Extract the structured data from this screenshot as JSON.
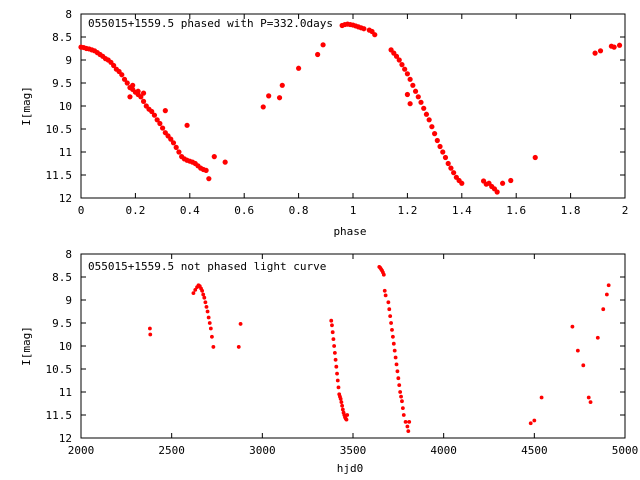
{
  "chart_data": [
    {
      "type": "scatter",
      "title": "055015+1559.5 phased with P=332.0days",
      "xlabel": "phase",
      "ylabel": "I[mag]",
      "xlim": [
        0,
        2
      ],
      "ylim": [
        12,
        8
      ],
      "y_inverted": true,
      "grid": false,
      "marker_color": "#ff0000",
      "x_ticks": [
        "0",
        "0.2",
        "0.4",
        "0.6",
        "0.8",
        "1",
        "1.2",
        "1.4",
        "1.6",
        "1.8",
        "2"
      ],
      "y_ticks": [
        "8",
        "8.5",
        "9",
        "9.5",
        "10",
        "10.5",
        "11",
        "11.5",
        "12"
      ],
      "series": [
        {
          "x": [
            0.0,
            0.01,
            0.02,
            0.03,
            0.04,
            0.05,
            0.06,
            0.07,
            0.08,
            0.09,
            0.1,
            0.11,
            0.12,
            0.13,
            0.14,
            0.15,
            0.16,
            0.17,
            0.18,
            0.19,
            0.2,
            0.21,
            0.22,
            0.23,
            0.24,
            0.25,
            0.26,
            0.27,
            0.28,
            0.29,
            0.3,
            0.31,
            0.32,
            0.33,
            0.34,
            0.35,
            0.36,
            0.37,
            0.38,
            0.39,
            0.4,
            0.41,
            0.42,
            0.43,
            0.44,
            0.45,
            0.46,
            0.47,
            0.49,
            0.53,
            0.67,
            0.69,
            0.73,
            0.74,
            0.8,
            0.87,
            0.89,
            0.96,
            0.97,
            0.98,
            0.99,
            1.0,
            1.01,
            1.02,
            1.03,
            1.04,
            1.06,
            1.07,
            1.08,
            1.14,
            1.15,
            1.16,
            1.17,
            1.18,
            1.19,
            1.2,
            1.21,
            1.22,
            1.23,
            1.24,
            1.25,
            1.26,
            1.27,
            1.28,
            1.29,
            1.3,
            1.31,
            1.32,
            1.33,
            1.34,
            1.35,
            1.36,
            1.37,
            1.38,
            1.39,
            1.4,
            1.48,
            1.49,
            1.5,
            1.51,
            1.52,
            1.53,
            1.55,
            1.58,
            1.67,
            1.89,
            1.91,
            1.95,
            1.96,
            1.98,
            0.18,
            0.19,
            0.21,
            0.23,
            0.31,
            0.39,
            1.2,
            1.21
          ],
          "y": [
            8.72,
            8.73,
            8.75,
            8.76,
            8.78,
            8.8,
            8.84,
            8.88,
            8.92,
            8.97,
            9.0,
            9.05,
            9.12,
            9.2,
            9.25,
            9.32,
            9.42,
            9.5,
            9.6,
            9.64,
            9.7,
            9.75,
            9.8,
            9.9,
            10.0,
            10.07,
            10.12,
            10.2,
            10.3,
            10.38,
            10.48,
            10.58,
            10.65,
            10.72,
            10.8,
            10.9,
            11.0,
            11.1,
            11.15,
            11.18,
            11.2,
            11.22,
            11.25,
            11.3,
            11.35,
            11.38,
            11.4,
            11.58,
            11.1,
            11.22,
            10.02,
            9.78,
            9.82,
            9.55,
            9.18,
            8.88,
            8.67,
            8.25,
            8.23,
            8.22,
            8.23,
            8.24,
            8.26,
            8.28,
            8.3,
            8.32,
            8.35,
            8.38,
            8.45,
            8.78,
            8.85,
            8.92,
            9.0,
            9.1,
            9.2,
            9.3,
            9.42,
            9.55,
            9.68,
            9.8,
            9.92,
            10.05,
            10.18,
            10.3,
            10.45,
            10.6,
            10.75,
            10.88,
            11.0,
            11.12,
            11.25,
            11.35,
            11.45,
            11.55,
            11.62,
            11.68,
            11.63,
            11.7,
            11.68,
            11.75,
            11.8,
            11.87,
            11.68,
            11.62,
            11.12,
            8.85,
            8.8,
            8.7,
            8.72,
            8.68,
            9.8,
            9.55,
            9.68,
            9.72,
            10.1,
            10.42,
            9.75,
            9.95
          ]
        }
      ]
    },
    {
      "type": "scatter",
      "title": "055015+1559.5 not phased light curve",
      "xlabel": "hjd0",
      "ylabel": "I[mag]",
      "xlim": [
        2000,
        5000
      ],
      "ylim": [
        12,
        8
      ],
      "y_inverted": true,
      "grid": false,
      "marker_color": "#ff0000",
      "x_ticks": [
        "2000",
        "2500",
        "3000",
        "3500",
        "4000",
        "4500",
        "5000"
      ],
      "y_ticks": [
        "8",
        "8.5",
        "9",
        "9.5",
        "10",
        "10.5",
        "11",
        "11.5",
        "12"
      ],
      "series": [
        {
          "x": [
            2380,
            2382,
            2620,
            2630,
            2640,
            2648,
            2655,
            2662,
            2668,
            2674,
            2680,
            2686,
            2692,
            2698,
            2704,
            2710,
            2716,
            2722,
            2730,
            2870,
            2880,
            3380,
            3384,
            3388,
            3392,
            3396,
            3400,
            3404,
            3408,
            3412,
            3416,
            3420,
            3424,
            3428,
            3432,
            3436,
            3440,
            3444,
            3448,
            3452,
            3456,
            3460,
            3464,
            3468,
            3645,
            3650,
            3655,
            3660,
            3665,
            3670,
            3675,
            3680,
            3695,
            3700,
            3705,
            3710,
            3715,
            3720,
            3725,
            3730,
            3735,
            3740,
            3745,
            3750,
            3755,
            3760,
            3765,
            3770,
            3775,
            3780,
            3790,
            3800,
            3805,
            3810,
            4480,
            4500,
            4540,
            4710,
            4740,
            4770,
            4800,
            4810,
            4850,
            4880,
            4900,
            4910
          ],
          "y": [
            9.62,
            9.75,
            8.85,
            8.78,
            8.72,
            8.68,
            8.7,
            8.75,
            8.8,
            8.88,
            8.95,
            9.05,
            9.15,
            9.25,
            9.38,
            9.5,
            9.62,
            9.8,
            10.02,
            10.02,
            9.52,
            9.45,
            9.55,
            9.7,
            9.85,
            10.0,
            10.15,
            10.3,
            10.45,
            10.6,
            10.75,
            10.9,
            11.05,
            11.1,
            11.15,
            11.22,
            11.3,
            11.38,
            11.45,
            11.5,
            11.55,
            11.58,
            11.6,
            11.5,
            8.28,
            8.3,
            8.33,
            8.36,
            8.4,
            8.45,
            8.8,
            8.9,
            9.05,
            9.2,
            9.35,
            9.5,
            9.65,
            9.8,
            9.95,
            10.1,
            10.25,
            10.4,
            10.55,
            10.7,
            10.85,
            11.0,
            11.1,
            11.2,
            11.35,
            11.5,
            11.65,
            11.75,
            11.85,
            11.65,
            11.68,
            11.62,
            11.12,
            9.58,
            10.1,
            10.42,
            11.12,
            11.22,
            9.82,
            9.2,
            8.88,
            8.68
          ]
        }
      ]
    }
  ]
}
